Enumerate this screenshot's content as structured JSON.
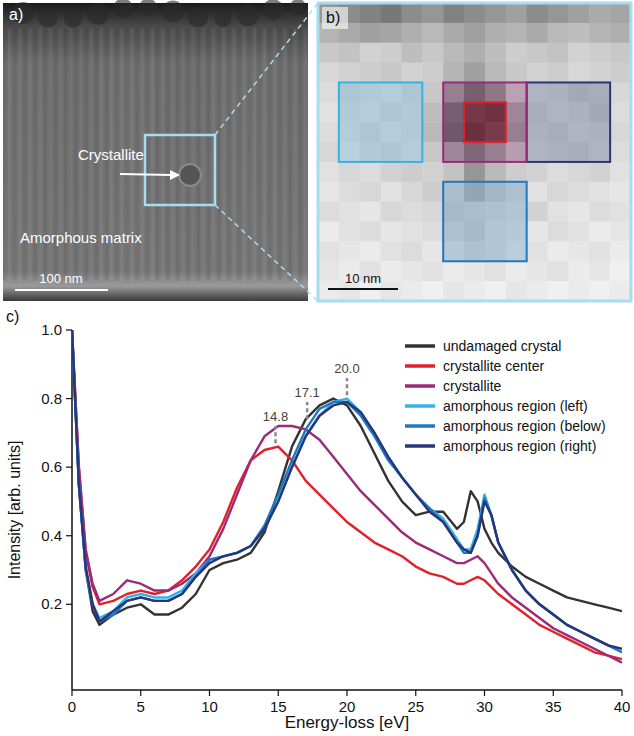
{
  "panel_a": {
    "panel_label": "a)",
    "annotation": "Crystallite",
    "region": "Amorphous matrix",
    "scale_bar": "100 nm"
  },
  "panel_b": {
    "panel_label": "b)",
    "scale_bar": "10 nm",
    "pixels": [
      [
        150,
        140,
        130,
        120,
        140,
        150,
        130,
        140,
        150,
        160,
        140,
        150,
        160,
        170,
        165
      ],
      [
        180,
        170,
        160,
        165,
        175,
        185,
        170,
        160,
        175,
        180,
        170,
        185,
        190,
        180,
        175
      ],
      [
        200,
        195,
        210,
        205,
        190,
        200,
        185,
        175,
        190,
        205,
        200,
        195,
        210,
        205,
        200
      ],
      [
        215,
        210,
        205,
        200,
        210,
        205,
        180,
        160,
        185,
        200,
        210,
        205,
        215,
        210,
        205
      ],
      [
        220,
        205,
        210,
        215,
        205,
        200,
        150,
        110,
        140,
        195,
        215,
        210,
        200,
        205,
        215
      ],
      [
        225,
        210,
        215,
        205,
        210,
        190,
        110,
        70,
        60,
        160,
        205,
        215,
        210,
        200,
        220
      ],
      [
        220,
        215,
        205,
        215,
        210,
        185,
        100,
        55,
        75,
        150,
        210,
        205,
        215,
        210,
        215
      ],
      [
        215,
        220,
        210,
        205,
        215,
        200,
        160,
        120,
        150,
        190,
        215,
        210,
        205,
        215,
        220
      ],
      [
        225,
        215,
        220,
        210,
        205,
        210,
        195,
        150,
        185,
        205,
        210,
        220,
        215,
        210,
        225
      ],
      [
        230,
        220,
        215,
        225,
        215,
        205,
        210,
        180,
        200,
        215,
        225,
        215,
        220,
        225,
        230
      ],
      [
        220,
        225,
        230,
        215,
        220,
        215,
        205,
        210,
        215,
        220,
        210,
        225,
        230,
        220,
        225
      ],
      [
        235,
        225,
        220,
        230,
        225,
        220,
        215,
        205,
        220,
        225,
        230,
        220,
        225,
        235,
        230
      ],
      [
        225,
        230,
        235,
        225,
        220,
        230,
        225,
        215,
        220,
        230,
        225,
        235,
        230,
        225,
        235
      ],
      [
        230,
        235,
        225,
        235,
        230,
        225,
        235,
        230,
        225,
        235,
        230,
        225,
        235,
        230,
        240
      ],
      [
        235,
        230,
        240,
        230,
        235,
        240,
        230,
        235,
        240,
        230,
        235,
        240,
        235,
        240,
        235
      ]
    ]
  },
  "chart_data": {
    "type": "line",
    "panel_label": "c)",
    "x_label": "Energy-loss [eV]",
    "y_label": "Intensity [arb. units]",
    "xlim": [
      0,
      40
    ],
    "xticks": [
      0,
      5,
      10,
      15,
      20,
      25,
      30,
      35,
      40
    ],
    "ylim": [
      -0.05,
      1.0
    ],
    "yticks": [
      0.2,
      0.4,
      0.6,
      0.8,
      {
        "value": 1,
        "label": "1.0"
      }
    ],
    "legend": "upper right",
    "x": [
      0,
      0.5,
      1,
      1.5,
      2,
      3,
      4,
      5,
      6,
      7,
      8,
      9,
      10,
      11,
      12,
      13,
      14,
      15,
      16,
      17,
      18,
      19,
      20,
      21,
      22,
      23,
      24,
      25,
      26,
      27,
      28,
      28.5,
      29,
      29.5,
      30,
      30.5,
      31,
      32,
      33,
      34,
      35,
      36,
      37,
      38,
      39,
      40
    ],
    "series": [
      {
        "name": "undamaged crystal",
        "color": "#333333",
        "values": [
          1.0,
          0.55,
          0.3,
          0.18,
          0.14,
          0.17,
          0.19,
          0.2,
          0.17,
          0.17,
          0.19,
          0.23,
          0.3,
          0.32,
          0.33,
          0.35,
          0.41,
          0.53,
          0.66,
          0.74,
          0.78,
          0.8,
          0.78,
          0.72,
          0.64,
          0.56,
          0.5,
          0.46,
          0.47,
          0.47,
          0.42,
          0.44,
          0.53,
          0.5,
          0.42,
          0.38,
          0.35,
          0.31,
          0.28,
          0.26,
          0.24,
          0.22,
          0.21,
          0.2,
          0.19,
          0.18
        ]
      },
      {
        "name": "crystallite center",
        "color": "#e3202a",
        "values": [
          1.0,
          0.6,
          0.35,
          0.25,
          0.2,
          0.21,
          0.23,
          0.24,
          0.23,
          0.24,
          0.27,
          0.31,
          0.36,
          0.44,
          0.54,
          0.62,
          0.65,
          0.66,
          0.62,
          0.56,
          0.52,
          0.48,
          0.44,
          0.41,
          0.38,
          0.36,
          0.34,
          0.31,
          0.29,
          0.28,
          0.26,
          0.26,
          0.27,
          0.28,
          0.27,
          0.25,
          0.23,
          0.2,
          0.17,
          0.14,
          0.12,
          0.1,
          0.08,
          0.06,
          0.05,
          0.04
        ]
      },
      {
        "name": "crystallite",
        "color": "#9b2a7a",
        "values": [
          1.0,
          0.6,
          0.36,
          0.26,
          0.21,
          0.23,
          0.27,
          0.26,
          0.24,
          0.24,
          0.26,
          0.29,
          0.34,
          0.42,
          0.52,
          0.62,
          0.69,
          0.72,
          0.72,
          0.71,
          0.68,
          0.63,
          0.58,
          0.53,
          0.49,
          0.45,
          0.41,
          0.38,
          0.36,
          0.34,
          0.32,
          0.32,
          0.33,
          0.34,
          0.32,
          0.29,
          0.26,
          0.22,
          0.19,
          0.16,
          0.13,
          0.11,
          0.09,
          0.07,
          0.05,
          0.03
        ]
      },
      {
        "name": "amorphous region (left)",
        "color": "#36b1e6",
        "values": [
          1.0,
          0.55,
          0.3,
          0.2,
          0.16,
          0.18,
          0.22,
          0.23,
          0.22,
          0.22,
          0.24,
          0.29,
          0.33,
          0.34,
          0.35,
          0.37,
          0.42,
          0.5,
          0.6,
          0.69,
          0.75,
          0.79,
          0.8,
          0.76,
          0.7,
          0.63,
          0.57,
          0.52,
          0.48,
          0.45,
          0.39,
          0.36,
          0.36,
          0.42,
          0.52,
          0.46,
          0.38,
          0.3,
          0.24,
          0.2,
          0.17,
          0.14,
          0.12,
          0.1,
          0.08,
          0.06
        ]
      },
      {
        "name": "amorphous region (below)",
        "color": "#1f78c1",
        "values": [
          1.0,
          0.55,
          0.3,
          0.2,
          0.15,
          0.17,
          0.21,
          0.22,
          0.21,
          0.21,
          0.23,
          0.28,
          0.33,
          0.34,
          0.35,
          0.37,
          0.43,
          0.52,
          0.62,
          0.71,
          0.77,
          0.79,
          0.79,
          0.75,
          0.69,
          0.62,
          0.57,
          0.52,
          0.48,
          0.44,
          0.38,
          0.35,
          0.35,
          0.4,
          0.51,
          0.46,
          0.38,
          0.3,
          0.24,
          0.2,
          0.17,
          0.14,
          0.12,
          0.1,
          0.08,
          0.06
        ]
      },
      {
        "name": "amorphous region (right)",
        "color": "#27357a",
        "values": [
          1.0,
          0.55,
          0.31,
          0.2,
          0.15,
          0.18,
          0.21,
          0.22,
          0.21,
          0.21,
          0.23,
          0.28,
          0.32,
          0.34,
          0.35,
          0.37,
          0.42,
          0.5,
          0.6,
          0.69,
          0.75,
          0.78,
          0.79,
          0.76,
          0.7,
          0.63,
          0.57,
          0.52,
          0.47,
          0.44,
          0.38,
          0.36,
          0.35,
          0.4,
          0.5,
          0.46,
          0.38,
          0.3,
          0.24,
          0.2,
          0.17,
          0.14,
          0.12,
          0.1,
          0.08,
          0.07
        ]
      }
    ],
    "annotations": [
      {
        "x": 14.8,
        "y": 0.67,
        "label": "14.8"
      },
      {
        "x": 17.1,
        "y": 0.74,
        "label": "17.1"
      },
      {
        "x": 20.0,
        "y": 0.81,
        "label": "20.0"
      }
    ]
  }
}
